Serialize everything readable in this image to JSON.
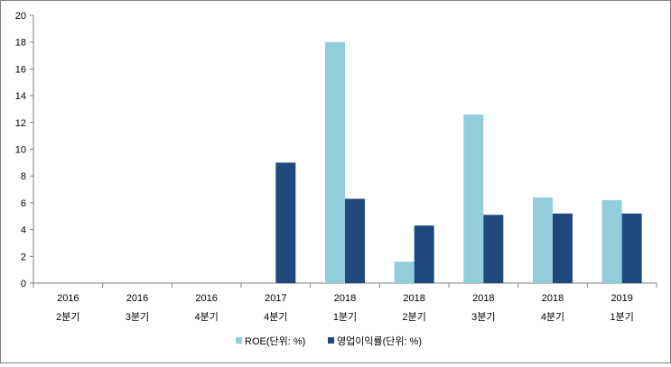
{
  "chart_data": {
    "type": "bar",
    "title": "",
    "xlabel": "",
    "ylabel": "",
    "ylim": [
      0,
      20
    ],
    "yticks": [
      0,
      2,
      4,
      6,
      8,
      10,
      12,
      14,
      16,
      18,
      20
    ],
    "grid": false,
    "legend_position": "bottom",
    "categories": [
      {
        "year": "2016",
        "quarter": "2분기"
      },
      {
        "year": "2016",
        "quarter": "3분기"
      },
      {
        "year": "2016",
        "quarter": "4분기"
      },
      {
        "year": "2017",
        "quarter": "4분기"
      },
      {
        "year": "2018",
        "quarter": "1분기"
      },
      {
        "year": "2018",
        "quarter": "2분기"
      },
      {
        "year": "2018",
        "quarter": "3분기"
      },
      {
        "year": "2018",
        "quarter": "4분기"
      },
      {
        "year": "2019",
        "quarter": "1분기"
      }
    ],
    "series": [
      {
        "name": "ROE(단위: %)",
        "color": "#92cddc",
        "values": [
          0,
          0,
          0,
          0,
          18.0,
          1.6,
          12.6,
          6.4,
          6.2
        ]
      },
      {
        "name": "영업이익률(단위: %)",
        "color": "#1f497d",
        "values": [
          0,
          0,
          0,
          9.0,
          6.3,
          4.3,
          5.1,
          5.2,
          5.2
        ]
      }
    ]
  }
}
